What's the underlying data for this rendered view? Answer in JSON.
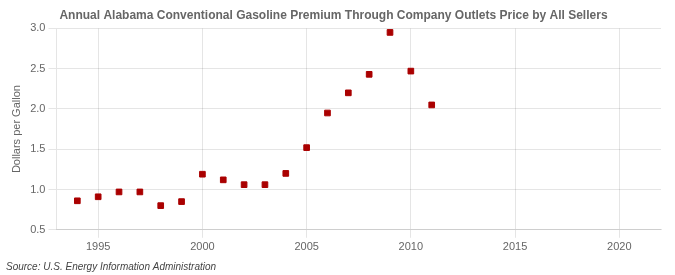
{
  "chart_data": {
    "type": "scatter",
    "title": "Annual Alabama Conventional Gasoline Premium Through Company Outlets Price by All Sellers",
    "ylabel": "Dollars per Gallon",
    "source": "Source: U.S. Energy Information Administration",
    "x": [
      1994,
      1995,
      1996,
      1997,
      1998,
      1999,
      2000,
      2001,
      2002,
      2003,
      2004,
      2005,
      2006,
      2007,
      2008,
      2009,
      2010,
      2011
    ],
    "values": [
      0.86,
      0.91,
      0.97,
      0.97,
      0.8,
      0.85,
      1.19,
      1.12,
      1.06,
      1.06,
      1.2,
      1.52,
      1.95,
      2.2,
      2.43,
      2.95,
      2.47,
      2.05
    ],
    "color": "#aa0000",
    "marker": "square",
    "grid": true,
    "xlim": [
      1993,
      2022
    ],
    "xticks": [
      1995,
      2000,
      2005,
      2010,
      2015,
      2020
    ],
    "ylim": [
      0.5,
      3.0
    ],
    "yticks": [
      0.5,
      {
        "value": 1.0,
        "label": "1.0"
      },
      1.5,
      {
        "value": 2.0,
        "label": "2.0"
      },
      2.5,
      {
        "value": 3.0,
        "label": "3.0"
      }
    ]
  }
}
